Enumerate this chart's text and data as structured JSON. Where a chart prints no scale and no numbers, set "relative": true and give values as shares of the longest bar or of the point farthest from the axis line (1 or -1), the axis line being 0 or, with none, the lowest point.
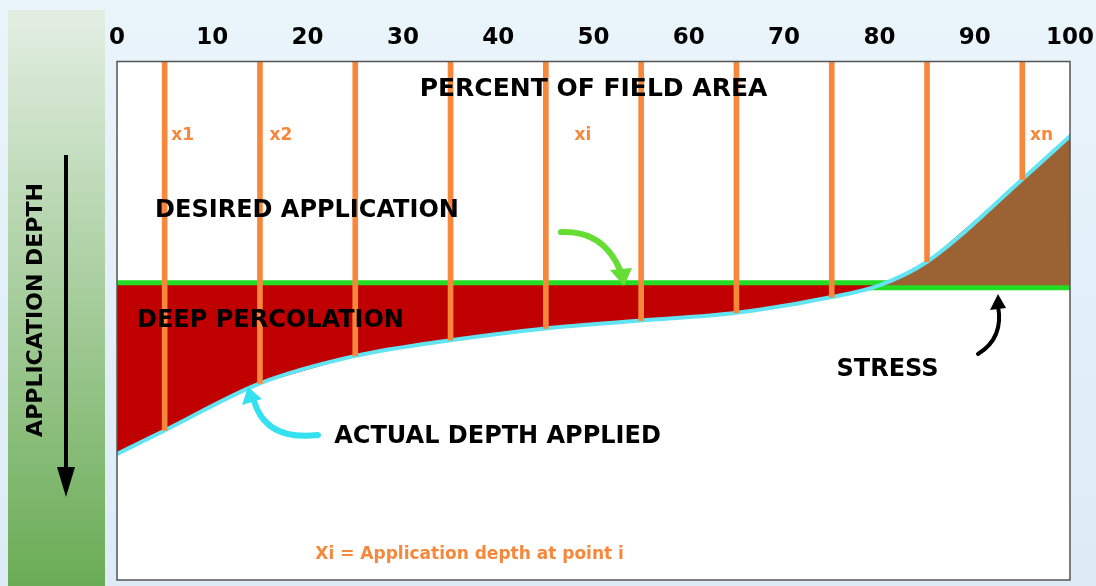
{
  "chart_data": {
    "type": "line",
    "relative": true,
    "xlabel": "PERCENT OF FIELD AREA",
    "ylabel": "APPLICATION DEPTH",
    "xlim": [
      0,
      100
    ],
    "xticks": [
      0,
      10,
      20,
      30,
      40,
      50,
      60,
      70,
      80,
      90,
      100
    ],
    "tick_labels": "x",
    "grid": false,
    "legend": false,
    "series": [
      {
        "color": "#c00000",
        "x": [
          0,
          5,
          15,
          25,
          35,
          45,
          55,
          65,
          75,
          80
        ],
        "values": [
          null,
          null,
          null,
          null,
          null,
          null,
          null,
          null,
          null,
          null
        ],
        "lower": [
          -1.0,
          -0.94,
          -0.82,
          -0.75,
          -0.71,
          -0.68,
          -0.66,
          -0.64,
          -0.6,
          -0.57
        ],
        "upper": [
          -0.57,
          -0.57,
          -0.57,
          -0.57,
          -0.57,
          -0.57,
          -0.57,
          -0.57,
          -0.57,
          -0.57
        ]
      },
      {
        "color": "#9b6234",
        "x": [
          80,
          85,
          95,
          100
        ],
        "values": [
          null,
          null,
          null,
          null
        ],
        "lower": [
          -0.57,
          -0.57,
          -0.57,
          -0.57
        ],
        "upper": [
          -0.57,
          -0.51,
          -0.3,
          -0.19
        ]
      },
      {
        "type": "bar",
        "color": "#f7883b",
        "x": [
          5,
          15,
          25,
          35,
          45,
          55,
          65,
          75,
          85,
          95
        ],
        "values": [
          -0.94,
          -0.82,
          -0.75,
          -0.71,
          -0.68,
          -0.66,
          -0.64,
          -0.6,
          -0.51,
          -0.3
        ]
      },
      {
        "color": "#62e4f2",
        "x": [
          0,
          5,
          15,
          25,
          35,
          45,
          55,
          65,
          75,
          80,
          85,
          95,
          100
        ],
        "values": [
          -1.0,
          -0.94,
          -0.82,
          -0.75,
          -0.71,
          -0.68,
          -0.66,
          -0.64,
          -0.6,
          -0.57,
          -0.51,
          -0.3,
          -0.19
        ]
      }
    ],
    "ref_lines": [
      {
        "axis": "y",
        "value": -0.57,
        "color": "#22dd22"
      }
    ],
    "annotations": [
      "x1",
      "x2",
      "xi",
      "xn",
      "DESIRED APPLICATION",
      "DEEP PERCOLATION",
      "ACTUAL DEPTH APPLIED",
      "STRESS",
      "Xi = Application depth at point i"
    ]
  }
}
